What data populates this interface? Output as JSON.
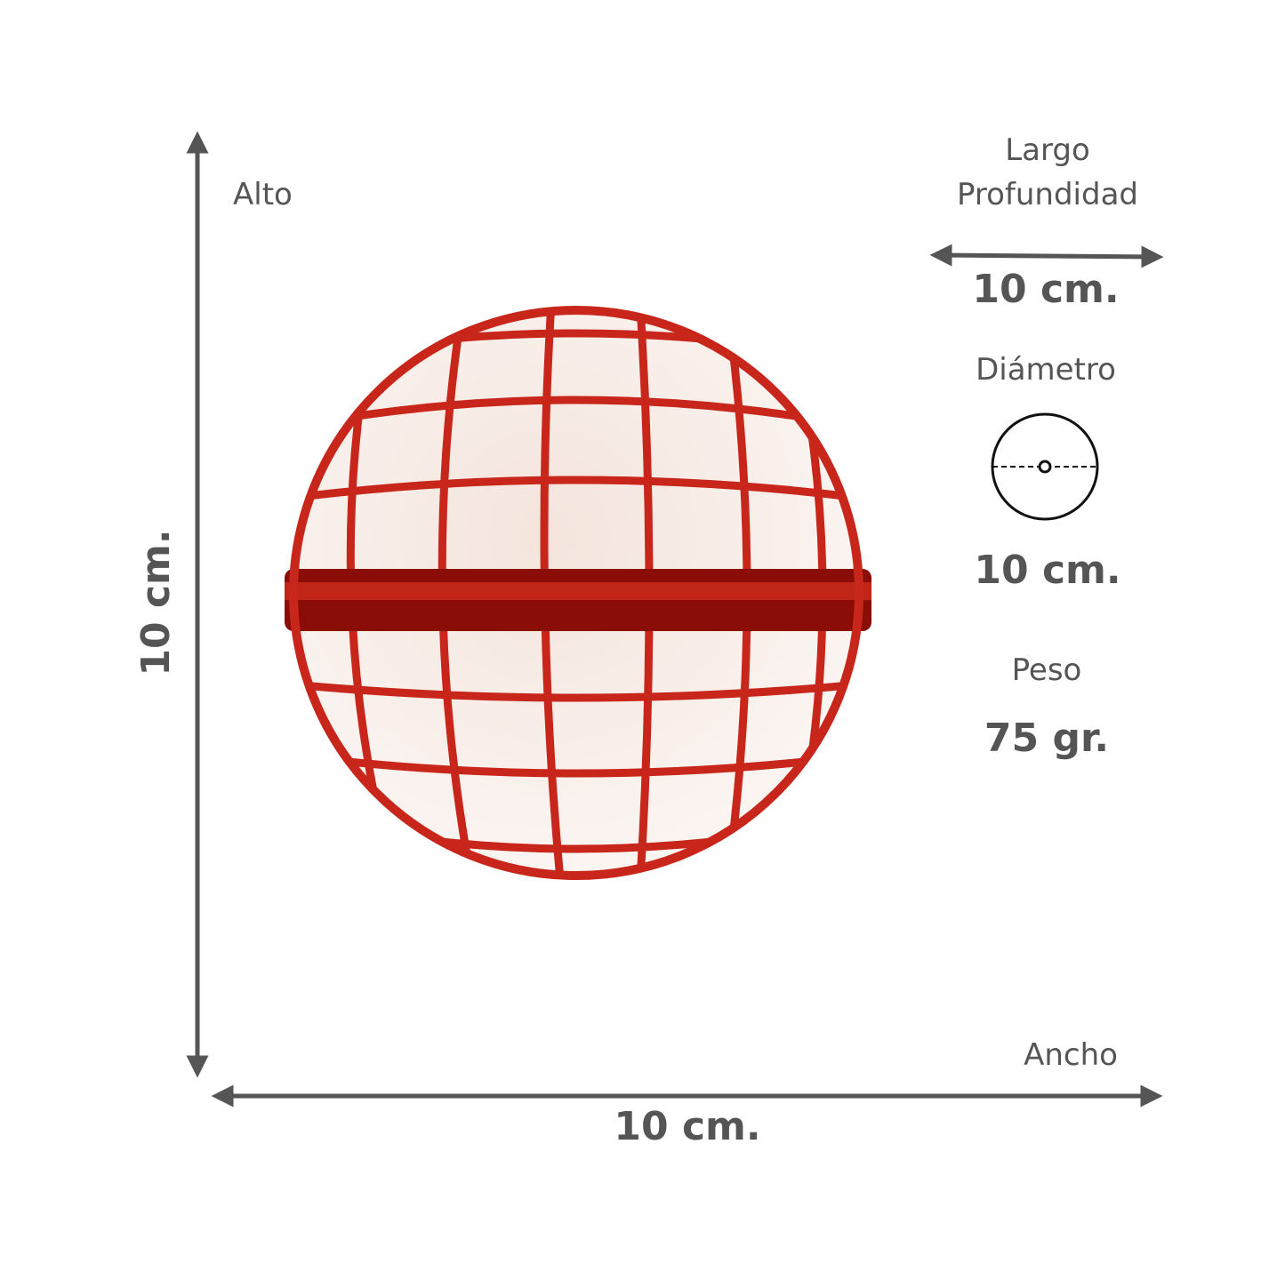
{
  "height": {
    "label": "Alto",
    "value": "10 cm."
  },
  "length": {
    "label": "Largo\nProfundidad",
    "value": "10 cm."
  },
  "diameter": {
    "label": "Diámetro",
    "value": "10 cm."
  },
  "weight": {
    "label": "Peso",
    "value": "75 gr."
  },
  "width": {
    "label": "Ancho",
    "value": "10 cm."
  }
}
